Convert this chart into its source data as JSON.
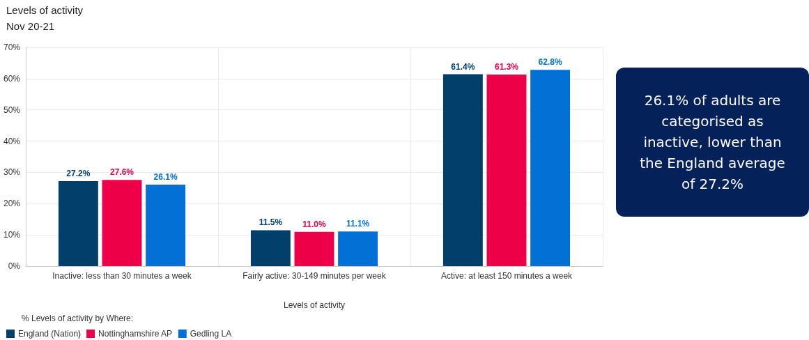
{
  "chart_data": {
    "type": "bar",
    "title": "Levels of activity",
    "subtitle": "Nov 20-21",
    "xlabel": "Levels of activity",
    "legend_title": "% Levels of activity by Where:",
    "categories": [
      "Inactive: less than 30 minutes a week",
      "Fairly active: 30-149 minutes per week",
      "Active: at least 150 minutes a week"
    ],
    "series": [
      {
        "name": "England (Nation)",
        "color": "#023f6b",
        "values": [
          27.2,
          11.5,
          61.4
        ],
        "value_labels": [
          "27.2%",
          "11.5%",
          "61.4%"
        ]
      },
      {
        "name": "Nottinghamshire AP",
        "color": "#ee0049",
        "values": [
          27.6,
          11.0,
          61.3
        ],
        "value_labels": [
          "27.6%",
          "11.0%",
          "61.3%"
        ]
      },
      {
        "name": "Gedling LA",
        "color": "#0270d4",
        "values": [
          26.1,
          11.1,
          62.8
        ],
        "value_labels": [
          "26.1%",
          "11.1%",
          "62.8%"
        ]
      }
    ],
    "ylim": [
      0,
      70
    ],
    "yticks": [
      {
        "value": 0,
        "label": "0%"
      },
      {
        "value": 10,
        "label": "10%"
      },
      {
        "value": 20,
        "label": "20%"
      },
      {
        "value": 30,
        "label": "30%"
      },
      {
        "value": 40,
        "label": "40%"
      },
      {
        "value": 50,
        "label": "50%"
      },
      {
        "value": 60,
        "label": "60%"
      },
      {
        "value": 70,
        "label": "70%"
      }
    ],
    "grid": true,
    "legend": "bottom left",
    "annotations": [
      "26.1% of adults are categorised as inactive, lower than the England average of 27.2%"
    ]
  }
}
